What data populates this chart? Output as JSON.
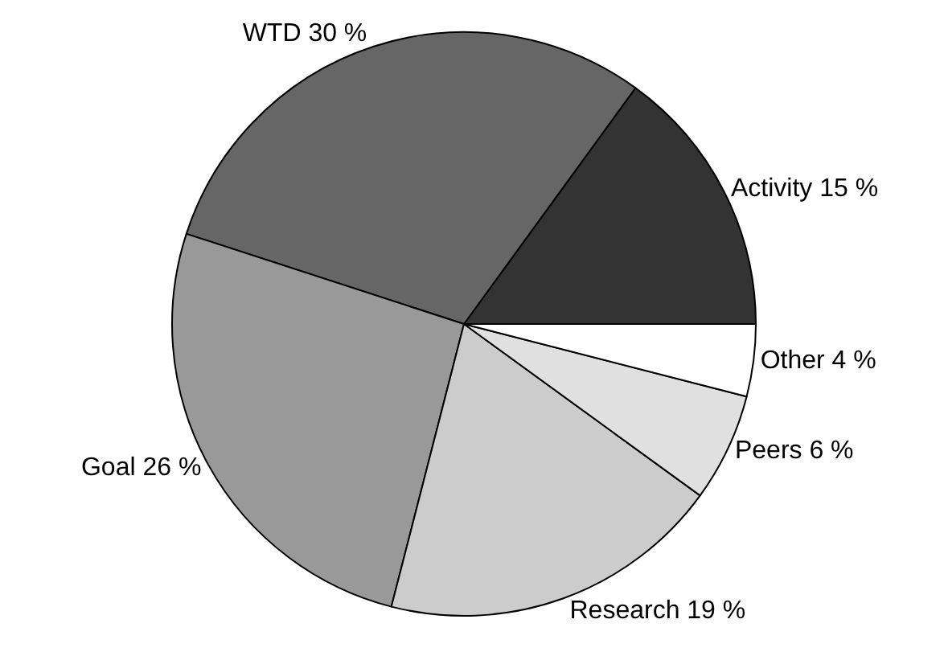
{
  "chart_data": {
    "type": "pie",
    "categories": [
      "Activity",
      "WTD",
      "Goal",
      "Research",
      "Peers",
      "Other"
    ],
    "values": [
      15,
      30,
      26,
      19,
      6,
      4
    ],
    "value_labels": [
      "15 %",
      "30 %",
      "26 %",
      "19 %",
      "6 %",
      "4 %"
    ],
    "colors": [
      "#333333",
      "#666666",
      "#999999",
      "#cccccc",
      "#e0e0e0",
      "#ffffff"
    ],
    "legend": false
  }
}
